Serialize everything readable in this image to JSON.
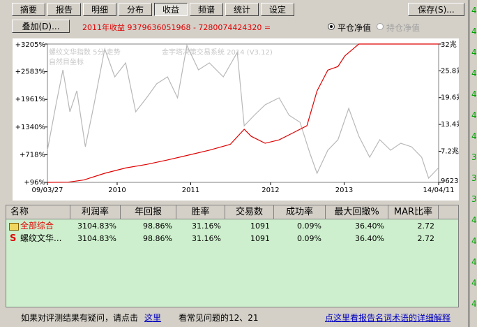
{
  "tabs": [
    "摘要",
    "报告",
    "明细",
    "分布",
    "收益",
    "频谱",
    "统计",
    "设定"
  ],
  "active_tab": 4,
  "save_button": "保存(S)...",
  "overlay_button": "叠加(D)...",
  "yearly_return": "2011年收益 9379636051968 - 7280074424320 =",
  "radios": [
    {
      "label": "平仓净值",
      "checked": true,
      "enabled": true
    },
    {
      "label": "持仓净值",
      "checked": false,
      "enabled": false
    }
  ],
  "chart_data": {
    "type": "line",
    "watermarks": [
      "螺纹文华指数 5分 走势",
      "金宇塔决策交易系统 2014 (V3.12)",
      "自然目坐标"
    ],
    "xlim": [
      2009.23,
      2014.28
    ],
    "xticks": [
      {
        "value": 2009.23,
        "label": "09/03/27"
      },
      {
        "value": 2010.13,
        "label": "2010"
      },
      {
        "value": 2011.08,
        "label": "2011"
      },
      {
        "value": 2012.11,
        "label": "2012"
      },
      {
        "value": 2013.06,
        "label": "2013"
      },
      {
        "value": 2014.28,
        "label": "14/04/11"
      }
    ],
    "ylim": [
      96,
      3205
    ],
    "yticks": [
      {
        "value": 96,
        "label": "+96%"
      },
      {
        "value": 718,
        "label": "+718%"
      },
      {
        "value": 1340,
        "label": "+1340%"
      },
      {
        "value": 1961,
        "label": "+1961%"
      },
      {
        "value": 2583,
        "label": "+2583%"
      },
      {
        "value": 3205,
        "label": "+3205%"
      }
    ],
    "y2lim": [
      9623,
      32000000000000
    ],
    "y2ticks": [
      {
        "value": 9623,
        "label": "9623"
      },
      {
        "value": 7200000000000,
        "label": "7.2兆"
      },
      {
        "value": 13400000000000,
        "label": "13.4兆"
      },
      {
        "value": 19600000000000,
        "label": "19.6兆"
      },
      {
        "value": 25800000000000,
        "label": "25.8兆"
      },
      {
        "value": 32000000000000,
        "label": "32兆"
      }
    ],
    "series": [
      {
        "color": "#b8b8b8",
        "x": [
          2009.23,
          2009.34,
          2009.43,
          2009.52,
          2009.61,
          2009.72,
          2009.83,
          2009.97,
          2010.1,
          2010.24,
          2010.37,
          2010.51,
          2010.64,
          2010.78,
          2010.91,
          2011.03,
          2011.18,
          2011.32,
          2011.5,
          2011.68,
          2011.77,
          2011.9,
          2012.04,
          2012.22,
          2012.35,
          2012.49,
          2012.62,
          2012.71,
          2012.85,
          2012.98,
          2013.12,
          2013.25,
          2013.39,
          2013.52,
          2013.66,
          2013.79,
          2013.93,
          2014.06,
          2014.15,
          2014.28
        ],
        "values": [
          818,
          1838,
          2624,
          1682,
          2153,
          896,
          1838,
          3095,
          2467,
          2781,
          1682,
          1996,
          2310,
          2467,
          1996,
          3173,
          2624,
          2781,
          2467,
          3016,
          1368,
          1603,
          1839,
          1996,
          1603,
          1446,
          740,
          300,
          818,
          1054,
          1760,
          1132,
          661,
          1054,
          818,
          975,
          896,
          661,
          190,
          426
        ]
      },
      {
        "color": "#e00000",
        "x": [
          2009.23,
          2009.5,
          2009.7,
          2009.97,
          2010.24,
          2010.51,
          2010.78,
          2011.03,
          2011.32,
          2011.59,
          2011.77,
          2011.86,
          2012.04,
          2012.22,
          2012.4,
          2012.58,
          2012.71,
          2012.85,
          2012.98,
          2013.07,
          2013.25,
          2013.52,
          2013.75,
          2014.28
        ],
        "values": [
          96,
          100,
          150,
          300,
          420,
          500,
          600,
          700,
          820,
          950,
          1290,
          1130,
          975,
          1050,
          1210,
          1370,
          2150,
          2620,
          2700,
          2940,
          3205,
          3205,
          3205,
          3205
        ]
      }
    ]
  },
  "table": {
    "columns": [
      "名称",
      "利润率",
      "年回报",
      "胜率",
      "交易数",
      "成功率",
      "最大回撤%",
      "MAR比率"
    ],
    "rows": [
      {
        "name": "全部综合",
        "cells": [
          "3104.83%",
          "98.86%",
          "31.16%",
          "1091",
          "0.09%",
          "36.40%",
          "2.72"
        ]
      },
      {
        "icon": "S",
        "name": "螺纹文华...",
        "cells": [
          "3104.83%",
          "98.86%",
          "31.16%",
          "1091",
          "0.09%",
          "36.40%",
          "2.72"
        ]
      }
    ]
  },
  "footer": {
    "question": "如果对评测结果有疑问，请点击",
    "link": "这里",
    "faq": "看常见问题的12、21",
    "glossary_link": "点这里看报告名词术语的详细解释"
  },
  "edge_digits": [
    "4",
    "4",
    "4",
    "4",
    "4",
    "4",
    "4",
    "3",
    "3",
    "3",
    "4",
    "4",
    "4",
    "4",
    "4"
  ]
}
